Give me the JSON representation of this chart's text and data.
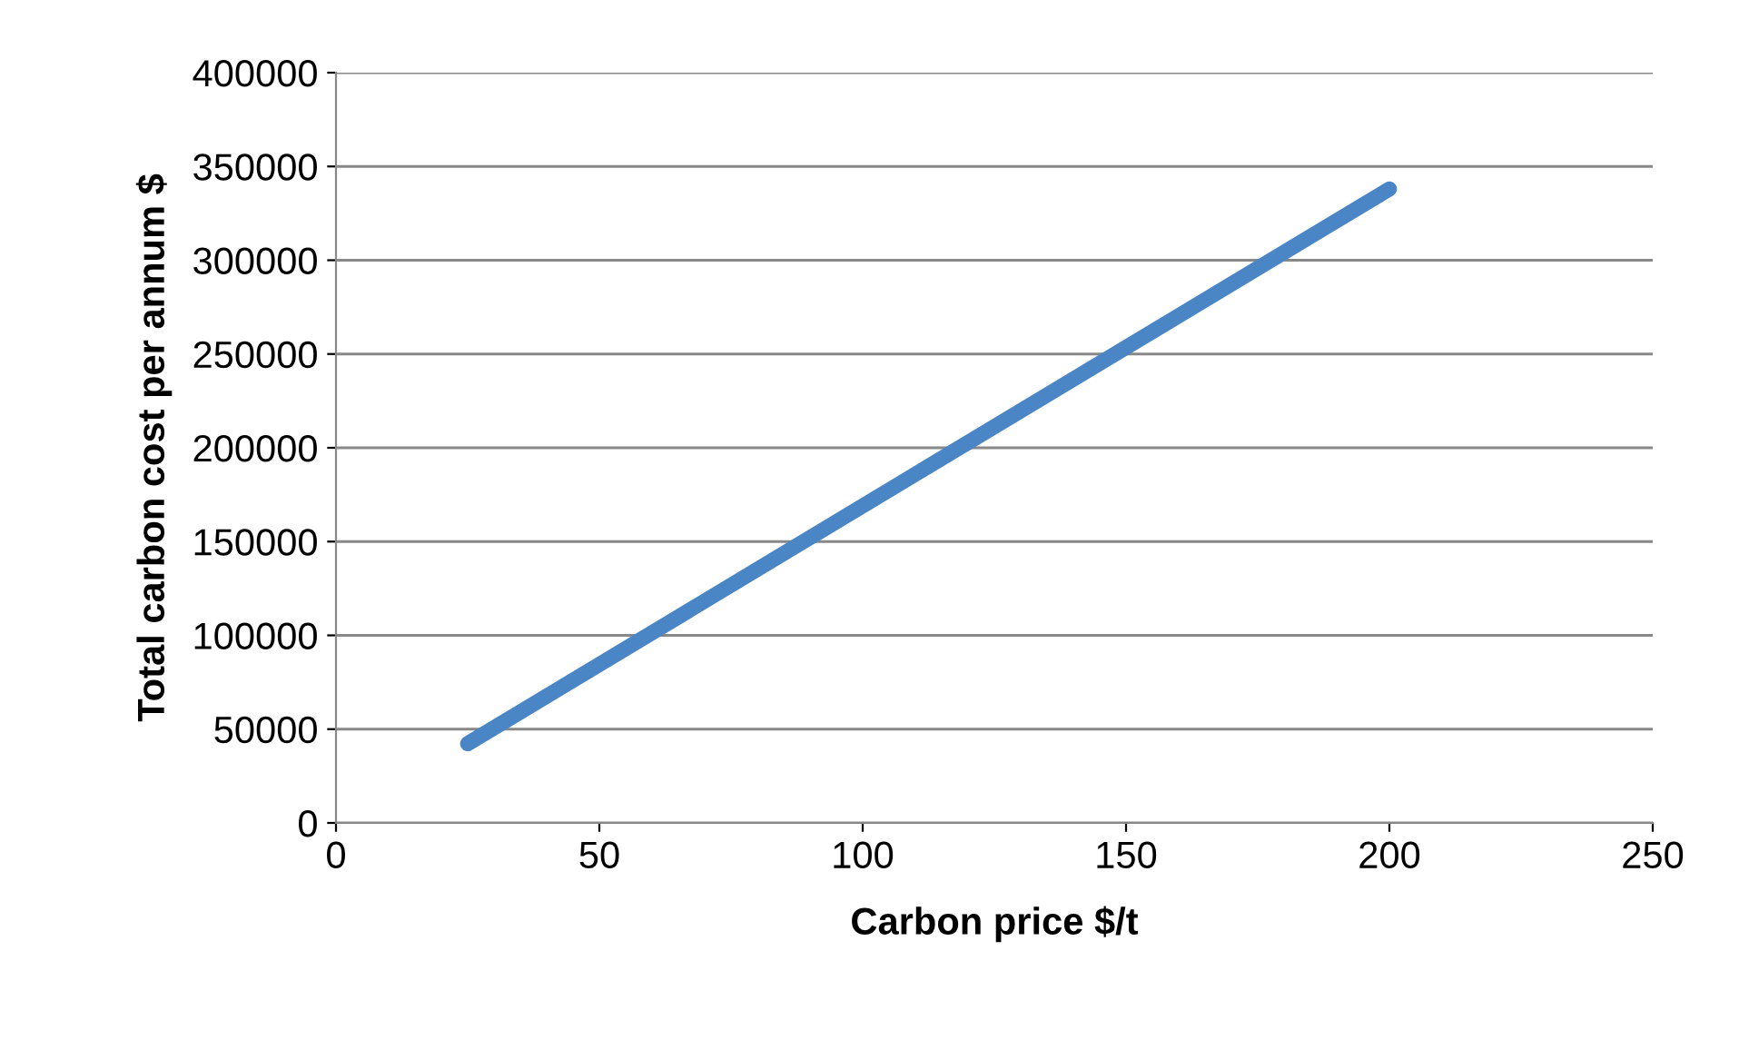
{
  "chart_data": {
    "type": "line",
    "xlabel": "Carbon price $/t",
    "ylabel": "Total carbon cost per annum $",
    "x": [
      25,
      200
    ],
    "series": [
      {
        "color": "#4a86c5",
        "values": [
          42250,
          338000
        ]
      }
    ],
    "xlim": [
      0,
      250
    ],
    "xticks": [
      0,
      50,
      100,
      150,
      200,
      250
    ],
    "ylim": [
      0,
      400000
    ],
    "yticks": [
      0,
      50000,
      100000,
      150000,
      200000,
      250000,
      300000,
      350000,
      400000
    ],
    "grid": "y",
    "marker": "none",
    "line_style": "solid"
  }
}
